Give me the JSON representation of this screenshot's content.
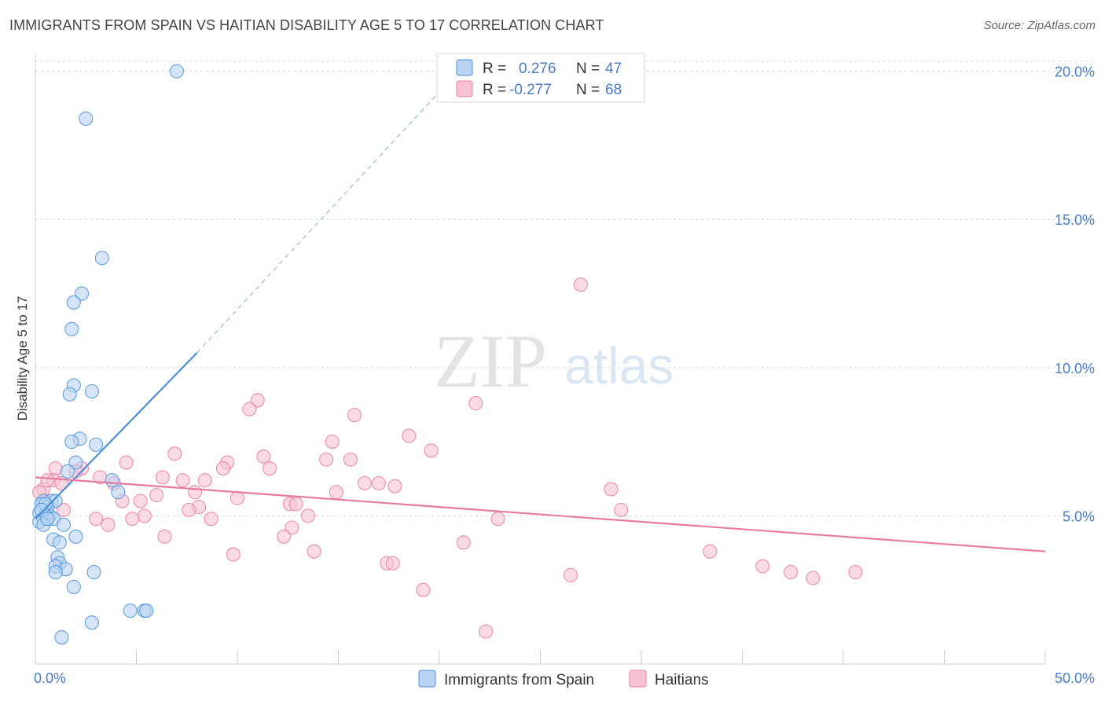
{
  "title": "IMMIGRANTS FROM SPAIN VS HAITIAN DISABILITY AGE 5 TO 17 CORRELATION CHART",
  "source": "Source: ZipAtlas.com",
  "watermark": {
    "zip": "ZIP",
    "atlas": "atlas"
  },
  "colors": {
    "blue": "#4a90d9",
    "blue_fill": "#b9d3f2",
    "pink": "#e77ca0",
    "pink_fill": "#f7c3d3",
    "axis_text": "#4a7cc7"
  },
  "legend": {
    "rows": [
      {
        "r_label": "R = ",
        "r_value": "0.276",
        "n_label": "N = ",
        "n_value": "47"
      },
      {
        "r_label": "R = ",
        "r_value": "-0.277",
        "n_label": "N = ",
        "n_value": "68"
      }
    ]
  },
  "bottom_legend": [
    "Immigrants from Spain",
    "Haitians"
  ],
  "chart_data": {
    "type": "scatter",
    "title": "IMMIGRANTS FROM SPAIN VS HAITIAN DISABILITY AGE 5 TO 17 CORRELATION CHART",
    "xlabel": "",
    "ylabel": "Disability Age 5 to 17",
    "xlim": [
      0,
      50
    ],
    "ylim": [
      0,
      20.6
    ],
    "x_tick_labels": [
      "0.0%",
      "50.0%"
    ],
    "y_ticks": [
      5,
      10,
      15,
      20
    ],
    "y_tick_labels": [
      "5.0%",
      "10.0%",
      "15.0%",
      "20.0%"
    ],
    "grid": true,
    "legend_position": "top-center",
    "series": [
      {
        "name": "Immigrants from Spain",
        "color": "#4a90d9",
        "r": 0.276,
        "n": 47,
        "trend": {
          "x": [
            0.0,
            8.0
          ],
          "y": [
            4.9,
            10.5
          ],
          "dashed_to": [
            20.0,
            19.3
          ]
        },
        "points": [
          [
            7.0,
            20.0
          ],
          [
            2.5,
            18.4
          ],
          [
            3.3,
            13.7
          ],
          [
            2.3,
            12.5
          ],
          [
            1.9,
            12.2
          ],
          [
            1.8,
            11.3
          ],
          [
            1.9,
            9.4
          ],
          [
            1.7,
            9.1
          ],
          [
            2.8,
            9.2
          ],
          [
            2.2,
            7.6
          ],
          [
            1.8,
            7.5
          ],
          [
            3.0,
            7.4
          ],
          [
            2.0,
            6.8
          ],
          [
            1.6,
            6.5
          ],
          [
            3.8,
            6.2
          ],
          [
            4.1,
            5.8
          ],
          [
            0.4,
            5.5
          ],
          [
            0.8,
            5.5
          ],
          [
            1.0,
            5.5
          ],
          [
            0.3,
            5.4
          ],
          [
            0.6,
            5.3
          ],
          [
            0.2,
            5.1
          ],
          [
            0.7,
            5.0
          ],
          [
            0.5,
            5.0
          ],
          [
            0.4,
            4.9
          ],
          [
            0.9,
            4.9
          ],
          [
            0.2,
            4.8
          ],
          [
            0.4,
            4.7
          ],
          [
            1.4,
            4.7
          ],
          [
            2.0,
            4.3
          ],
          [
            0.9,
            4.2
          ],
          [
            1.2,
            4.1
          ],
          [
            1.1,
            3.6
          ],
          [
            1.2,
            3.4
          ],
          [
            1.0,
            3.3
          ],
          [
            1.5,
            3.2
          ],
          [
            1.0,
            3.1
          ],
          [
            2.9,
            3.1
          ],
          [
            1.9,
            2.6
          ],
          [
            4.7,
            1.8
          ],
          [
            5.4,
            1.8
          ],
          [
            5.5,
            1.8
          ],
          [
            2.8,
            1.4
          ],
          [
            1.3,
            0.9
          ],
          [
            0.5,
            5.4
          ],
          [
            0.3,
            5.2
          ],
          [
            0.6,
            4.9
          ]
        ]
      },
      {
        "name": "Haitians",
        "color": "#e77ca0",
        "r": -0.277,
        "n": 68,
        "trend": {
          "x": [
            0.0,
            50.0
          ],
          "y": [
            6.3,
            3.8
          ]
        },
        "points": [
          [
            27.0,
            12.8
          ],
          [
            11.0,
            8.9
          ],
          [
            10.6,
            8.6
          ],
          [
            21.8,
            8.8
          ],
          [
            15.8,
            8.4
          ],
          [
            18.5,
            7.7
          ],
          [
            14.7,
            7.5
          ],
          [
            19.6,
            7.2
          ],
          [
            6.9,
            7.1
          ],
          [
            11.3,
            7.0
          ],
          [
            14.4,
            6.9
          ],
          [
            15.6,
            6.9
          ],
          [
            4.5,
            6.8
          ],
          [
            9.5,
            6.8
          ],
          [
            9.3,
            6.6
          ],
          [
            11.6,
            6.6
          ],
          [
            1.0,
            6.6
          ],
          [
            2.3,
            6.6
          ],
          [
            6.3,
            6.3
          ],
          [
            3.2,
            6.3
          ],
          [
            7.3,
            6.2
          ],
          [
            0.9,
            6.2
          ],
          [
            16.3,
            6.1
          ],
          [
            17.0,
            6.1
          ],
          [
            3.9,
            6.1
          ],
          [
            8.4,
            6.2
          ],
          [
            17.8,
            6.0
          ],
          [
            28.5,
            5.9
          ],
          [
            14.9,
            5.8
          ],
          [
            7.9,
            5.8
          ],
          [
            6.0,
            5.7
          ],
          [
            10.0,
            5.6
          ],
          [
            4.3,
            5.5
          ],
          [
            5.2,
            5.5
          ],
          [
            12.6,
            5.4
          ],
          [
            12.9,
            5.4
          ],
          [
            8.1,
            5.3
          ],
          [
            7.6,
            5.2
          ],
          [
            29.0,
            5.2
          ],
          [
            1.4,
            5.2
          ],
          [
            12.7,
            4.6
          ],
          [
            5.4,
            5.0
          ],
          [
            4.8,
            4.9
          ],
          [
            8.7,
            4.9
          ],
          [
            13.5,
            5.0
          ],
          [
            22.9,
            4.9
          ],
          [
            3.0,
            4.9
          ],
          [
            3.6,
            4.7
          ],
          [
            12.3,
            4.3
          ],
          [
            6.4,
            4.3
          ],
          [
            21.2,
            4.1
          ],
          [
            9.8,
            3.7
          ],
          [
            13.8,
            3.8
          ],
          [
            17.4,
            3.4
          ],
          [
            17.7,
            3.4
          ],
          [
            33.4,
            3.8
          ],
          [
            36.0,
            3.3
          ],
          [
            37.4,
            3.1
          ],
          [
            38.5,
            2.9
          ],
          [
            40.6,
            3.1
          ],
          [
            26.5,
            3.0
          ],
          [
            19.2,
            2.5
          ],
          [
            22.3,
            1.1
          ],
          [
            0.4,
            5.9
          ],
          [
            0.6,
            6.2
          ],
          [
            1.3,
            6.1
          ],
          [
            2.0,
            6.5
          ],
          [
            0.2,
            5.8
          ]
        ]
      }
    ]
  }
}
